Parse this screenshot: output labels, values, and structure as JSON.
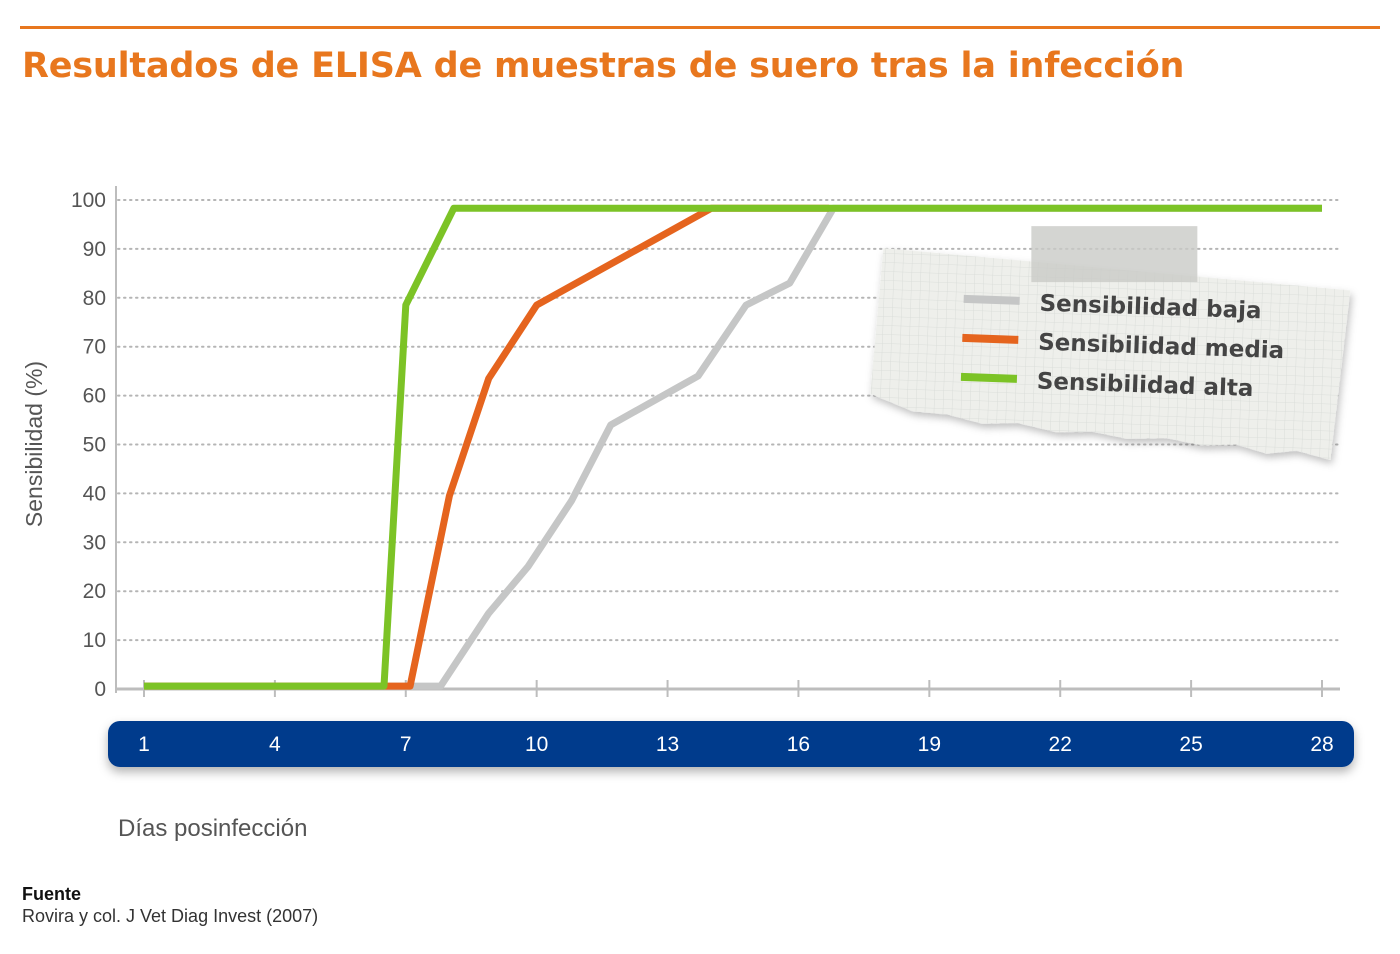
{
  "page": {
    "title": "Resultados de ELISA de muestras de suero tras la infección",
    "source_label": "Fuente",
    "source_text": "Rovira y col. J Vet Diag Invest (2007)"
  },
  "colors": {
    "accent": "#e8771e",
    "axis_band": "#003a8c",
    "grid": "#b5b5b5",
    "axis": "#bdbdbd",
    "text_gray": "#555555"
  },
  "chart_data": {
    "type": "line",
    "title": "Resultados de ELISA de muestras de suero tras la infección",
    "xlabel": "Días posinfección",
    "ylabel": "Sensibilidad (%)",
    "xlim": [
      1,
      28
    ],
    "ylim": [
      0,
      100
    ],
    "x_ticks": [
      1,
      4,
      7,
      10,
      13,
      16,
      19,
      22,
      25,
      28
    ],
    "y_ticks": [
      0,
      10,
      20,
      30,
      40,
      50,
      60,
      70,
      80,
      90,
      100
    ],
    "grid": "horizontal dotted",
    "legend_position": "top-right",
    "series": [
      {
        "name": "Sensibilidad baja",
        "color": "#c5c6c6",
        "points": [
          [
            1,
            0.6
          ],
          [
            7.8,
            0.6
          ],
          [
            8.9,
            15.5
          ],
          [
            9.8,
            25
          ],
          [
            10.8,
            38.5
          ],
          [
            11.7,
            54
          ],
          [
            13.7,
            64
          ],
          [
            14.8,
            78.5
          ],
          [
            15.8,
            83
          ],
          [
            16.8,
            98.3
          ],
          [
            28,
            98.3
          ]
        ]
      },
      {
        "name": "Sensibilidad media",
        "color": "#e5641e",
        "points": [
          [
            1,
            0.6
          ],
          [
            7.1,
            0.6
          ],
          [
            8.0,
            39.5
          ],
          [
            8.9,
            63.5
          ],
          [
            10.0,
            78.5
          ],
          [
            14.0,
            98.3
          ],
          [
            16.7,
            98.3
          ]
        ]
      },
      {
        "name": "Sensibilidad alta",
        "color": "#7cc326",
        "points": [
          [
            1,
            0.6
          ],
          [
            6.5,
            0.6
          ],
          [
            7.0,
            78.5
          ],
          [
            8.1,
            98.3
          ],
          [
            28,
            98.3
          ]
        ]
      }
    ]
  }
}
